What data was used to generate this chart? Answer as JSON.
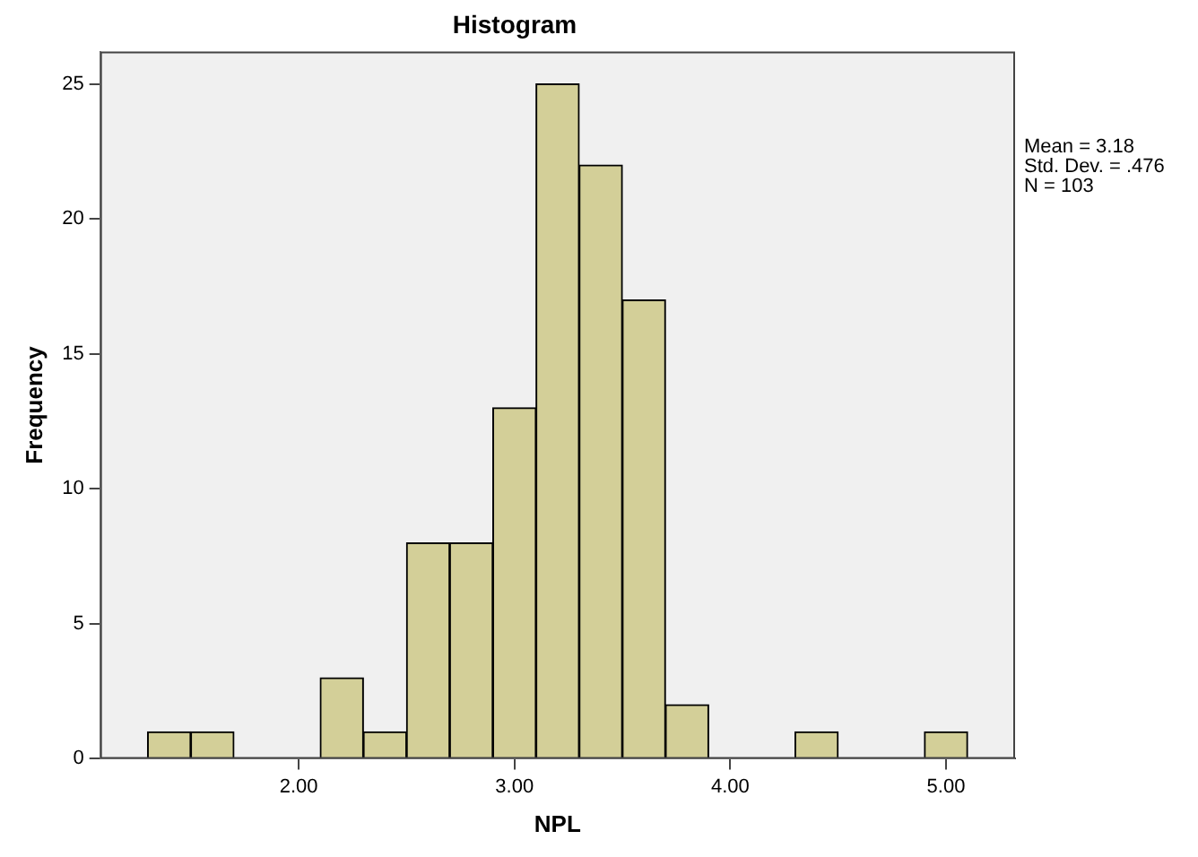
{
  "chart_data": {
    "type": "histogram",
    "title": "Histogram",
    "xlabel": "NPL",
    "ylabel": "Frequency",
    "bins": [
      1.3,
      1.5,
      1.7,
      1.9,
      2.1,
      2.3,
      2.5,
      2.7,
      2.9,
      3.1,
      3.3,
      3.5,
      3.7,
      3.9,
      4.1,
      4.3,
      4.5,
      4.7,
      4.9,
      5.1
    ],
    "values": [
      1,
      1,
      0,
      0,
      3,
      1,
      8,
      8,
      13,
      25,
      22,
      17,
      2,
      0,
      0,
      1,
      0,
      0,
      1
    ],
    "color": "#d3cf98",
    "xlim": [
      1.08,
      5.32
    ],
    "xticks": [
      {
        "value": 2,
        "label": "2.00"
      },
      {
        "value": 3,
        "label": "3.00"
      },
      {
        "value": 4,
        "label": "4.00"
      },
      {
        "value": 5,
        "label": "5.00"
      }
    ],
    "ylim": [
      0,
      26.2
    ],
    "yticks": [
      0,
      5,
      10,
      15,
      20,
      25
    ],
    "grid": false,
    "legend": false,
    "annotations": [
      "Mean = 3.18",
      "Std. Dev. = .476",
      "N = 103"
    ]
  }
}
